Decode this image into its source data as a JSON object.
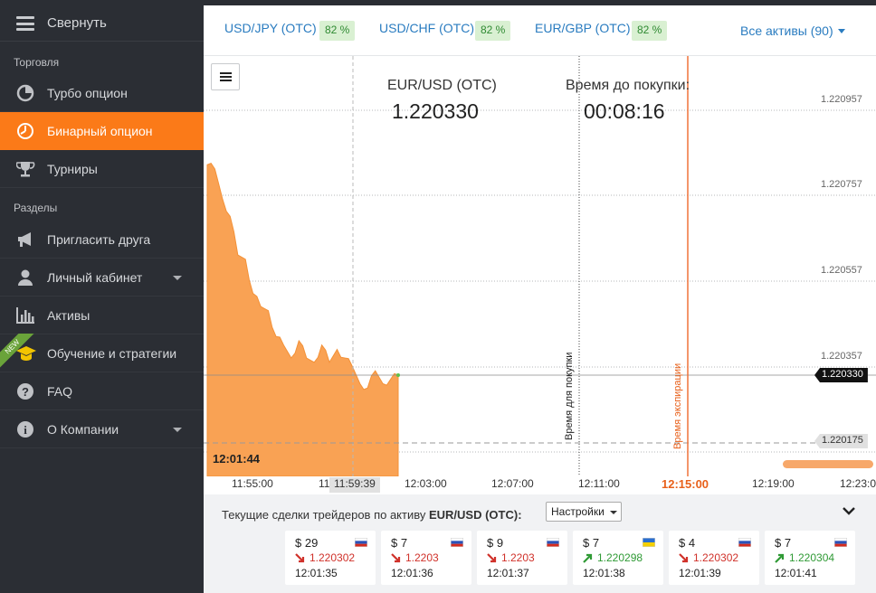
{
  "sidebar": {
    "collapse_label": "Свернуть",
    "section_trading": "Торговля",
    "items_trading": [
      {
        "label": "Турбо опцион",
        "icon": "pie-chart-icon"
      },
      {
        "label": "Бинарный опцион",
        "icon": "clock-icon",
        "active": true
      },
      {
        "label": "Турниры",
        "icon": "trophy-icon"
      }
    ],
    "section_sections": "Разделы",
    "items_sections": [
      {
        "label": "Пригласить друга",
        "icon": "megaphone-icon"
      },
      {
        "label": "Личный кабинет",
        "icon": "user-icon"
      },
      {
        "label": "Активы",
        "icon": "bar-chart-icon"
      },
      {
        "label": "Обучение и стратегии",
        "icon": "graduation-cap-icon",
        "badge": "NEW"
      },
      {
        "label": "FAQ",
        "icon": "question-icon"
      },
      {
        "label": "О Компании",
        "icon": "info-icon"
      }
    ]
  },
  "assets": [
    {
      "name": "USD/JPY (OTC)",
      "payout": "82 %"
    },
    {
      "name": "USD/CHF (OTC)",
      "payout": "82 %"
    },
    {
      "name": "EUR/GBP (OTC)",
      "payout": "82 %"
    }
  ],
  "all_assets_label": "Все активы (90)",
  "chart": {
    "pair": "EUR/USD (OTC)",
    "price": "1.220330",
    "timer_label": "Время до покупки:",
    "timer_value": "00:08:16",
    "y_ticks": [
      "1.220957",
      "1.220757",
      "1.220557",
      "1.220357"
    ],
    "current_price_tag": "1.220330",
    "lower_price_tag": "1.220175",
    "clock": "12:01:44",
    "purchase_line_label": "Время для покупки",
    "expiry_line_label": "Время экспирации",
    "x_ticks": [
      "11:55:00",
      "11",
      "12:03:00",
      "12:07:00",
      "12:11:00",
      "12:19:00",
      "12:23:0"
    ],
    "x_hover": "11:59:39",
    "x_expiry": "12:15:00",
    "colors": {
      "area": "#f9a254",
      "expiry": "#f0733a",
      "accent": "#fb7a18"
    }
  },
  "chart_data": {
    "type": "area",
    "title": "EUR/USD (OTC)",
    "xlabel": "",
    "ylabel": "",
    "x": [
      "11:53:20",
      "11:53:40",
      "11:54:00",
      "11:54:20",
      "11:54:40",
      "11:55:00",
      "11:55:20",
      "11:55:40",
      "11:56:00",
      "11:56:20",
      "11:56:40",
      "11:57:00",
      "11:57:20",
      "11:57:40",
      "11:58:00",
      "11:58:20",
      "11:58:40",
      "11:59:00",
      "11:59:20",
      "11:59:40",
      "12:00:00",
      "12:00:20",
      "12:00:40",
      "12:01:00",
      "12:01:20",
      "12:01:44"
    ],
    "series": [
      {
        "values": [
          1.22082,
          1.22081,
          1.22074,
          1.2207,
          1.22061,
          1.2206,
          1.22052,
          1.22049,
          1.22048,
          1.22042,
          1.2204,
          1.22037,
          1.22041,
          1.22037,
          1.22036,
          1.2204,
          1.22036,
          1.22039,
          1.22037,
          1.22035,
          1.22031,
          1.2203,
          1.22034,
          1.22031,
          1.22032,
          1.22033
        ]
      }
    ],
    "ylim": [
      1.22015,
      1.22105
    ]
  },
  "trades": {
    "title_prefix": "Текущие сделки трейдеров по активу",
    "title_asset": "EUR/USD (OTC):",
    "settings_label": "Настройки",
    "cards": [
      {
        "amount": "$ 29",
        "price": "1.220302",
        "direction": "down",
        "time": "12:01:35",
        "flag": "russia-flag"
      },
      {
        "amount": "$ 7",
        "price": "1.2203",
        "direction": "down",
        "time": "12:01:36",
        "flag": "russia-flag"
      },
      {
        "amount": "$ 9",
        "price": "1.2203",
        "direction": "down",
        "time": "12:01:37",
        "flag": "russia-flag"
      },
      {
        "amount": "$ 7",
        "price": "1.220298",
        "direction": "up",
        "time": "12:01:38",
        "flag": "ukraine-flag"
      },
      {
        "amount": "$ 4",
        "price": "1.220302",
        "direction": "down",
        "time": "12:01:39",
        "flag": "russia-flag"
      },
      {
        "amount": "$ 7",
        "price": "1.220304",
        "direction": "up",
        "time": "12:01:41",
        "flag": "russia-flag"
      }
    ]
  }
}
